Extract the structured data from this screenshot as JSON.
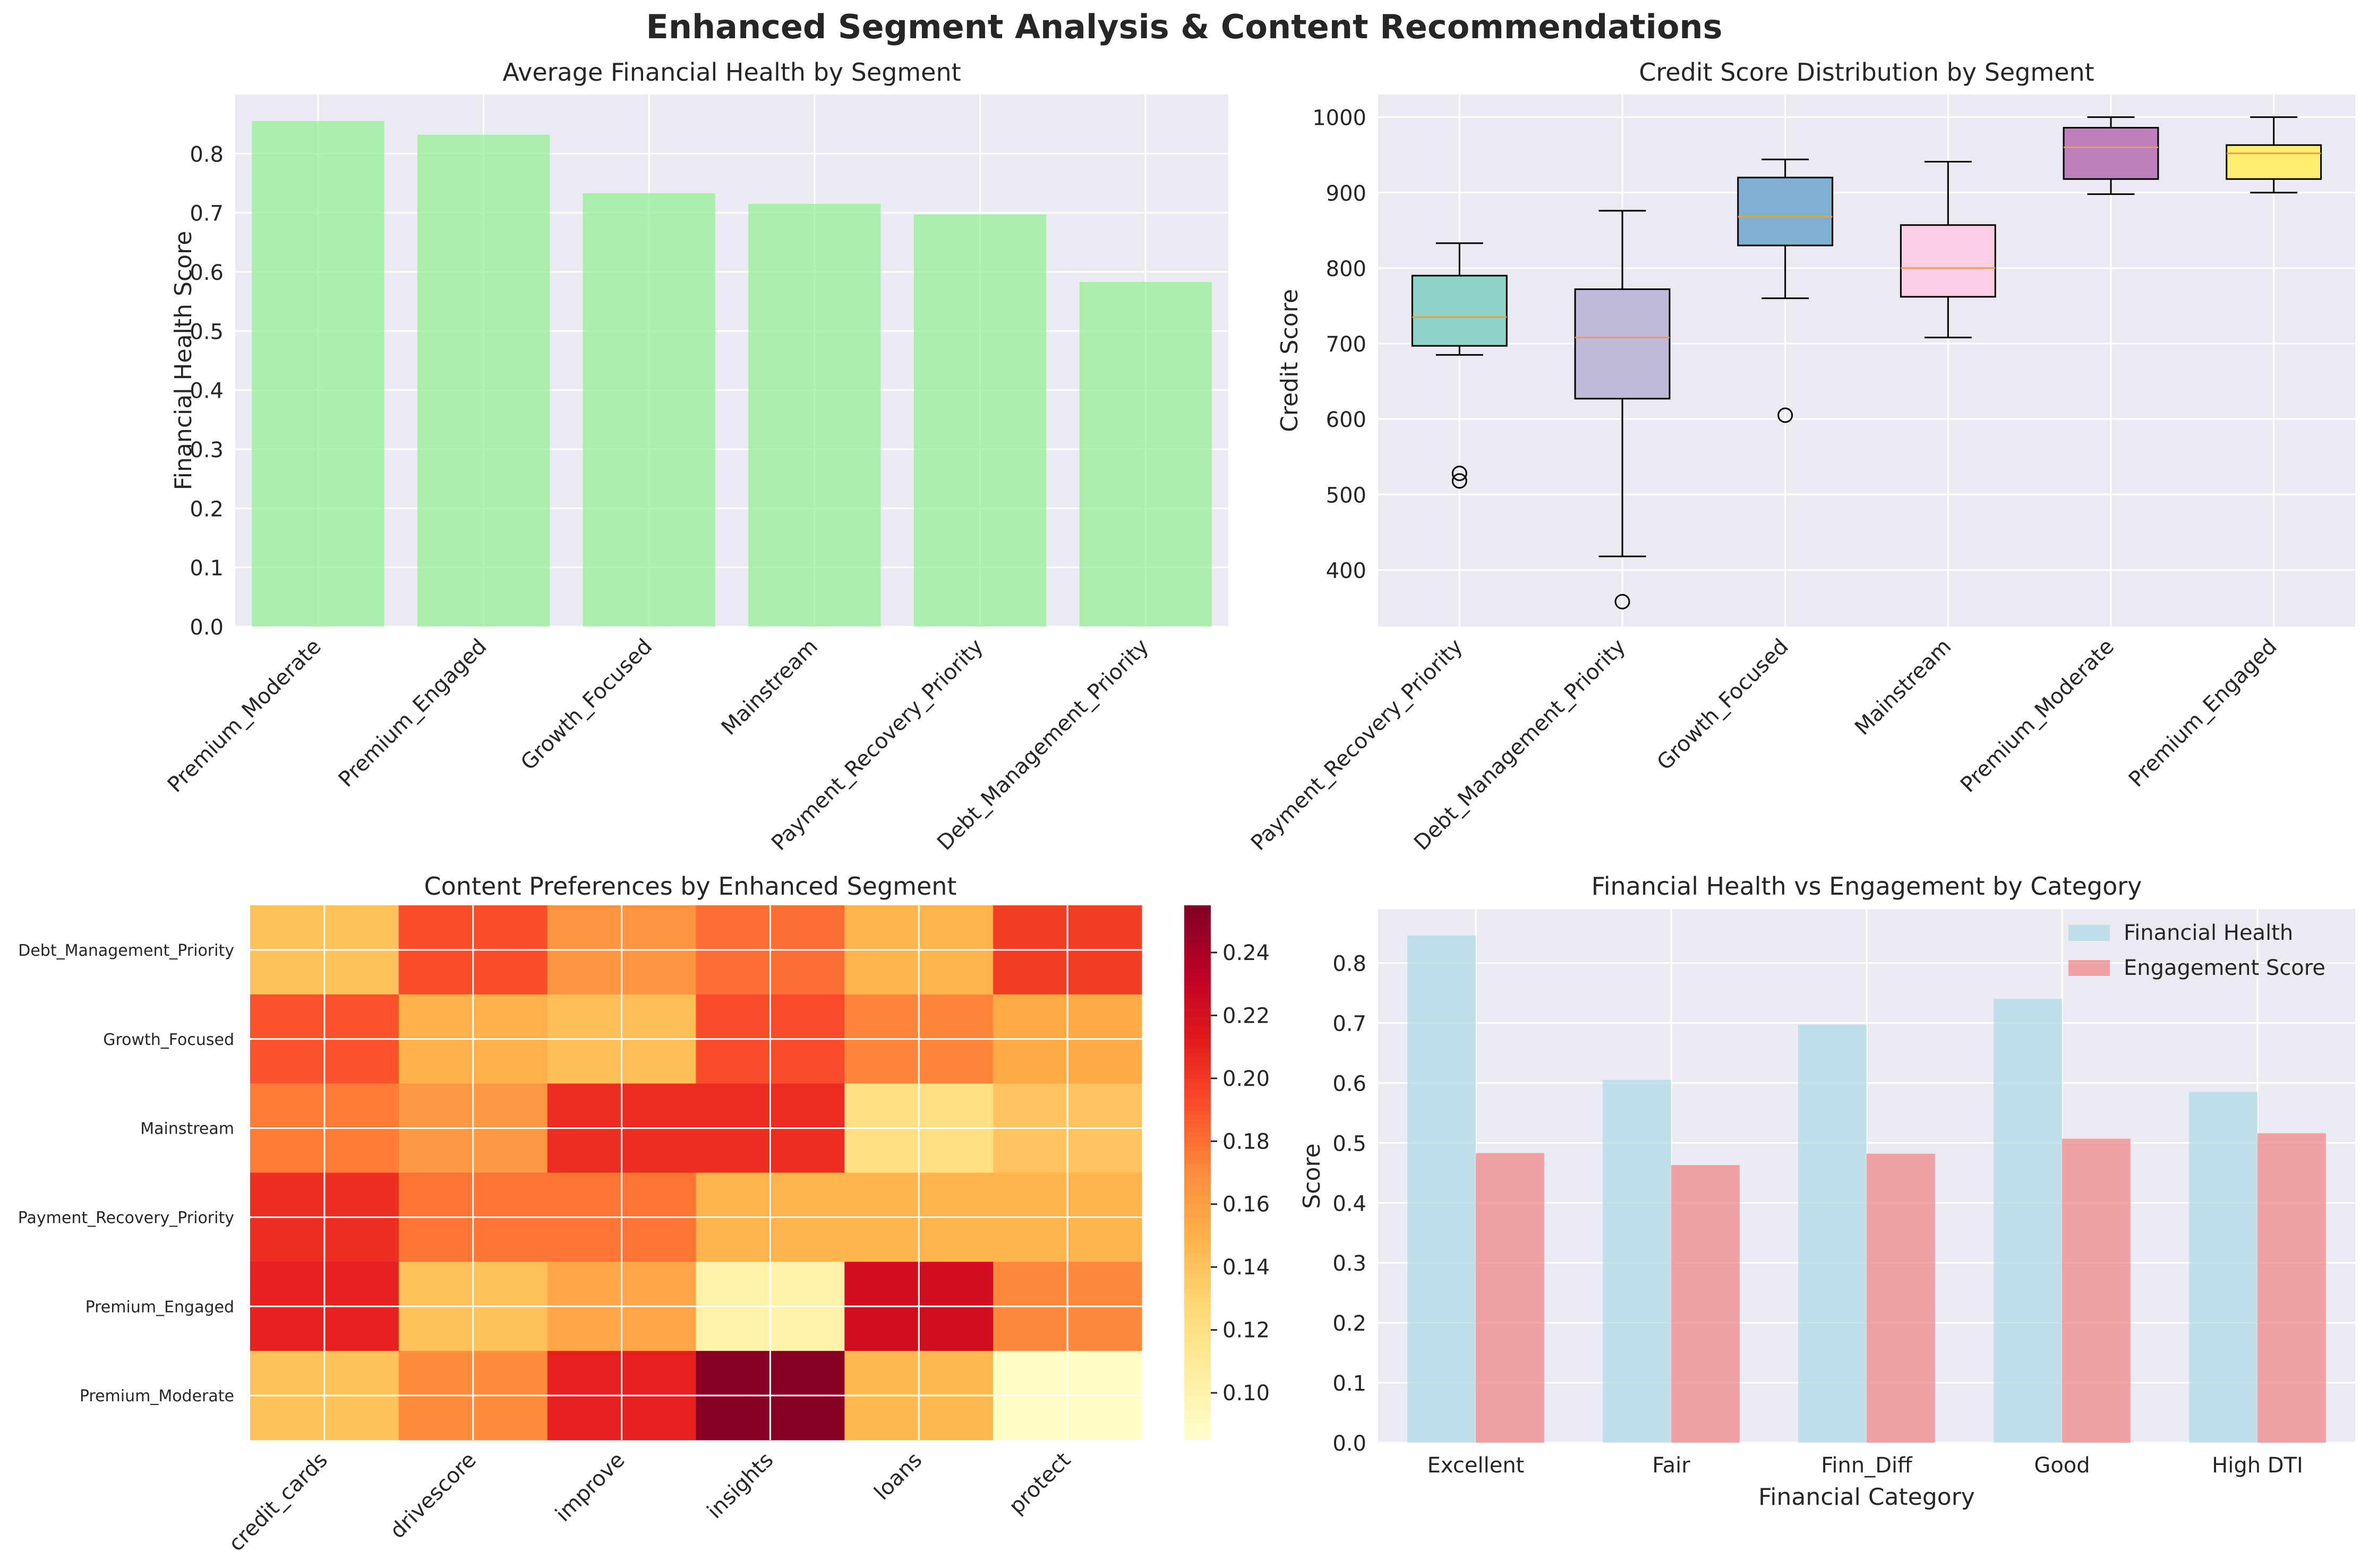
{
  "figure": {
    "suptitle": "Enhanced Segment Analysis & Content Recommendations"
  },
  "chart_data": [
    {
      "type": "bar",
      "title": "Average Financial Health by Segment",
      "xlabel": "",
      "ylabel": "Financial Health Score",
      "categories": [
        "Premium_Moderate",
        "Premium_Engaged",
        "Growth_Focused",
        "Mainstream",
        "Payment_Recovery_Priority",
        "Debt_Management_Priority"
      ],
      "values": [
        0.855,
        0.832,
        0.733,
        0.715,
        0.697,
        0.583
      ],
      "ylim": [
        0,
        0.9
      ],
      "yticks": [
        0.0,
        0.1,
        0.2,
        0.3,
        0.4,
        0.5,
        0.6,
        0.7,
        0.8
      ],
      "colors": {
        "bar": "#90ee90"
      },
      "grid": true
    },
    {
      "type": "box",
      "title": "Credit Score Distribution by Segment",
      "xlabel": "",
      "ylabel": "Credit Score",
      "categories": [
        "Payment_Recovery_Priority",
        "Debt_Management_Priority",
        "Growth_Focused",
        "Mainstream",
        "Premium_Moderate",
        "Premium_Engaged"
      ],
      "boxes": [
        {
          "whislo": 685,
          "q1": 697,
          "med": 735,
          "q3": 790,
          "whishi": 833,
          "fliers": [
            518,
            528
          ]
        },
        {
          "whislo": 418,
          "q1": 627,
          "med": 708,
          "q3": 772,
          "whishi": 876,
          "fliers": [
            358
          ]
        },
        {
          "whislo": 760,
          "q1": 830,
          "med": 868,
          "q3": 920,
          "whishi": 944,
          "fliers": [
            605
          ]
        },
        {
          "whislo": 708,
          "q1": 762,
          "med": 800,
          "q3": 857,
          "whishi": 941,
          "fliers": []
        },
        {
          "whislo": 898,
          "q1": 918,
          "med": 960,
          "q3": 986,
          "whishi": 1000,
          "fliers": []
        },
        {
          "whislo": 900,
          "q1": 918,
          "med": 952,
          "q3": 963,
          "whishi": 1000,
          "fliers": []
        }
      ],
      "ylim": [
        325,
        1030
      ],
      "yticks": [
        400,
        500,
        600,
        700,
        800,
        900,
        1000
      ],
      "colors": {
        "boxes": [
          "#8dd3c7",
          "#bebada",
          "#80b1d3",
          "#fccde5",
          "#bc80bd",
          "#ffed6f"
        ],
        "median": "#e8a04a"
      },
      "grid": true
    },
    {
      "type": "heatmap",
      "title": "Content Preferences by Enhanced Segment",
      "rows": [
        "Debt_Management_Priority",
        "Growth_Focused",
        "Mainstream",
        "Payment_Recovery_Priority",
        "Premium_Engaged",
        "Premium_Moderate"
      ],
      "columns": [
        "credit_cards",
        "drivescore",
        "improve",
        "insights",
        "loans",
        "protect"
      ],
      "values": [
        [
          0.14,
          0.192,
          0.166,
          0.181,
          0.148,
          0.198
        ],
        [
          0.19,
          0.15,
          0.143,
          0.193,
          0.173,
          0.152
        ],
        [
          0.176,
          0.164,
          0.205,
          0.205,
          0.121,
          0.139
        ],
        [
          0.204,
          0.178,
          0.178,
          0.148,
          0.148,
          0.148
        ],
        [
          0.21,
          0.14,
          0.156,
          0.101,
          0.222,
          0.172
        ],
        [
          0.14,
          0.17,
          0.21,
          0.253,
          0.145,
          0.089
        ]
      ],
      "colorbar": {
        "min": 0.085,
        "max": 0.255,
        "ticks": [
          0.1,
          0.12,
          0.14,
          0.16,
          0.18,
          0.2,
          0.22,
          0.24
        ]
      },
      "colormap": "YlOrRd"
    },
    {
      "type": "bar",
      "title": "Financial Health vs Engagement by Category",
      "xlabel": "Financial Category",
      "ylabel": "Score",
      "categories": [
        "Excellent",
        "Fair",
        "Finn_Diff",
        "Good",
        "High DTI"
      ],
      "series": [
        {
          "name": "Financial Health",
          "values": [
            0.846,
            0.605,
            0.697,
            0.74,
            0.585
          ],
          "color": "#add8e6"
        },
        {
          "name": "Engagement Score",
          "values": [
            0.483,
            0.463,
            0.482,
            0.507,
            0.516
          ],
          "color": "#f08080"
        }
      ],
      "ylim": [
        0,
        0.89
      ],
      "yticks": [
        0.0,
        0.1,
        0.2,
        0.3,
        0.4,
        0.5,
        0.6,
        0.7,
        0.8
      ],
      "legend": "top-right",
      "grid": true
    }
  ]
}
